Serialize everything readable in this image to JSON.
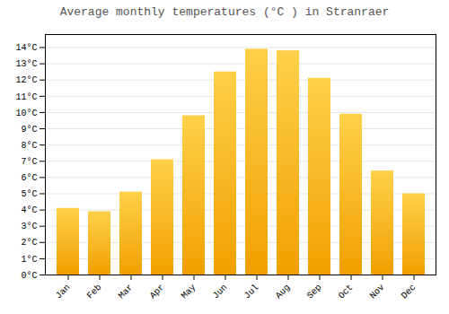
{
  "chart_data": {
    "type": "bar",
    "title": "Average monthly temperatures (°C ) in Stranraer",
    "categories": [
      "Jan",
      "Feb",
      "Mar",
      "Apr",
      "May",
      "Jun",
      "Jul",
      "Aug",
      "Sep",
      "Oct",
      "Nov",
      "Dec"
    ],
    "values": [
      4.1,
      3.9,
      5.1,
      7.1,
      9.8,
      12.5,
      13.9,
      13.8,
      12.1,
      9.9,
      6.4,
      5.0
    ],
    "color": [
      "#F0A000",
      "#FFD04A"
    ],
    "ylim": [
      0,
      14.8
    ],
    "yticks": [
      {
        "value": 0,
        "label": "0°C"
      },
      {
        "value": 1,
        "label": "1°C"
      },
      {
        "value": 2,
        "label": "2°C"
      },
      {
        "value": 3,
        "label": "3°C"
      },
      {
        "value": 4,
        "label": "4°C"
      },
      {
        "value": 5,
        "label": "5°C"
      },
      {
        "value": 6,
        "label": "6°C"
      },
      {
        "value": 7,
        "label": "7°C"
      },
      {
        "value": 8,
        "label": "8°C"
      },
      {
        "value": 9,
        "label": "9°C"
      },
      {
        "value": 10,
        "label": "10°C"
      },
      {
        "value": 11,
        "label": "11°C"
      },
      {
        "value": 12,
        "label": "12°C"
      },
      {
        "value": 13,
        "label": "13°C"
      },
      {
        "value": 14,
        "label": "14°C"
      }
    ],
    "grid": true
  }
}
